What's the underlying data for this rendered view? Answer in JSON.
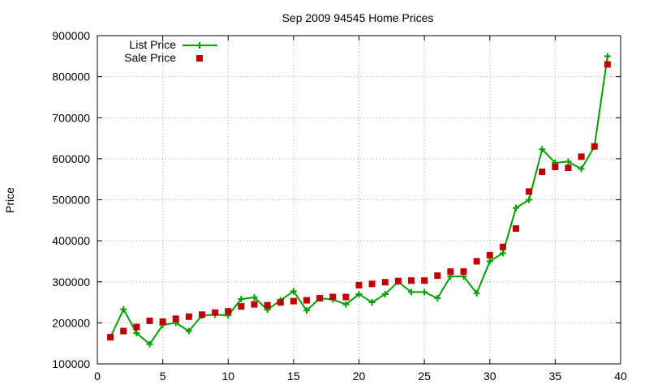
{
  "chart_data": {
    "type": "line",
    "title": "Sep 2009 94545 Home Prices",
    "xlabel": "",
    "ylabel": "Price",
    "xlim": [
      0,
      40
    ],
    "ylim": [
      100000,
      900000
    ],
    "x_ticks": [
      "0",
      "5",
      "10",
      "15",
      "20",
      "25",
      "30",
      "35",
      "40"
    ],
    "y_ticks": [
      "100000",
      "200000",
      "300000",
      "400000",
      "500000",
      "600000",
      "700000",
      "800000",
      "900000"
    ],
    "grid": true,
    "legend_position": "top-left",
    "x": [
      1,
      2,
      3,
      4,
      5,
      6,
      7,
      8,
      9,
      10,
      11,
      12,
      13,
      14,
      15,
      16,
      17,
      18,
      19,
      20,
      21,
      22,
      23,
      24,
      25,
      26,
      27,
      28,
      29,
      30,
      31,
      32,
      33,
      34,
      35,
      36,
      37,
      38,
      39
    ],
    "series": [
      {
        "name": "List Price",
        "style": "linespoints",
        "color": "#00a000",
        "values": [
          165000,
          233000,
          175000,
          148000,
          195000,
          200000,
          180000,
          218000,
          220000,
          218000,
          258000,
          262000,
          232000,
          255000,
          277000,
          230000,
          260000,
          257000,
          245000,
          270000,
          250000,
          270000,
          300000,
          275000,
          275000,
          260000,
          313000,
          313000,
          272000,
          350000,
          370000,
          480000,
          500000,
          623000,
          590000,
          593000,
          575000,
          630000,
          850000
        ]
      },
      {
        "name": "Sale Price",
        "style": "points",
        "color": "#c00000",
        "values": [
          165000,
          180000,
          190000,
          205000,
          203000,
          210000,
          215000,
          220000,
          225000,
          228000,
          240000,
          245000,
          243000,
          250000,
          253000,
          255000,
          260000,
          263000,
          263000,
          292000,
          295000,
          299000,
          302000,
          303000,
          303000,
          315000,
          325000,
          325000,
          350000,
          365000,
          385000,
          430000,
          520000,
          568000,
          580000,
          578000,
          605000,
          630000,
          830000
        ]
      }
    ]
  }
}
